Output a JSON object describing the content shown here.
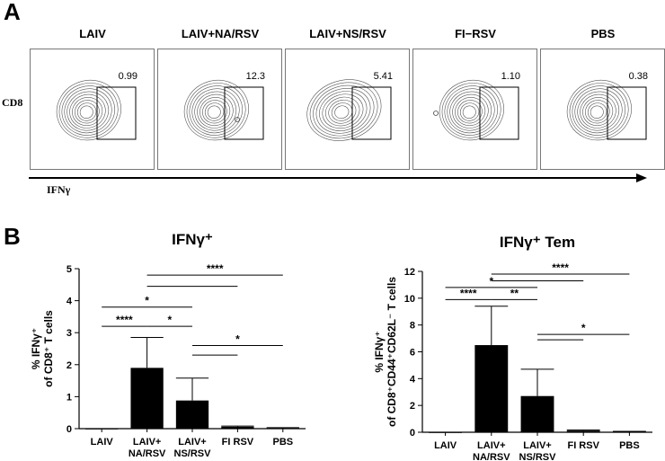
{
  "panel_a": {
    "letter": "A",
    "y_axis_label": "CD8",
    "x_axis_label": "IFNγ",
    "plots": [
      {
        "title": "LAIV",
        "gate_value": "0.99"
      },
      {
        "title": "LAIV+NA/RSV",
        "gate_value": "12.3"
      },
      {
        "title": "LAIV+NS/RSV",
        "gate_value": "5.41"
      },
      {
        "title": "FI−RSV",
        "gate_value": "1.10"
      },
      {
        "title": "PBS",
        "gate_value": "0.38"
      }
    ]
  },
  "panel_b": {
    "letter": "B"
  },
  "chart_data": [
    {
      "type": "bar",
      "title": "IFNγ⁺",
      "ylabel_line1": "% IFNγ⁺",
      "ylabel_line2": "of CD8⁺ T cells",
      "categories": [
        "LAIV",
        "LAIV+\nNA/RSV",
        "LAIV+\nNS/RSV",
        "FI RSV",
        "PBS"
      ],
      "values": [
        0,
        1.9,
        0.88,
        0.06,
        0.02
      ],
      "errors": [
        0,
        0.95,
        0.7,
        0.02,
        0.01
      ],
      "ylim": [
        0,
        5
      ],
      "yticks": [
        0,
        1,
        2,
        3,
        4,
        5
      ],
      "significance": [
        {
          "from": 1,
          "to": 4,
          "label": "****",
          "y": 4.8
        },
        {
          "from": 1,
          "to": 3,
          "label": "",
          "y": 4.45
        },
        {
          "from": 0,
          "to": 2,
          "label": "*",
          "y": 3.8
        },
        {
          "from": 0,
          "to": 1,
          "label": "****",
          "y": 3.2
        },
        {
          "from": 1,
          "to": 2,
          "label": "*",
          "y": 3.2
        },
        {
          "from": 2,
          "to": 4,
          "label": "*",
          "y": 2.6
        },
        {
          "from": 2,
          "to": 3,
          "label": "",
          "y": 2.3
        }
      ]
    },
    {
      "type": "bar",
      "title": "IFNγ⁺ Tem",
      "ylabel_line1": "% IFNγ⁺",
      "ylabel_line2": "of CD8⁺CD44⁺CD62L⁻ T cells",
      "categories": [
        "LAIV",
        "LAIV+\nNA/RSV",
        "LAIV+\nNS/RSV",
        "FI RSV",
        "PBS"
      ],
      "values": [
        0,
        6.5,
        2.7,
        0.12,
        0.05
      ],
      "errors": [
        0,
        2.9,
        2.0,
        0.05,
        0.02
      ],
      "ylim": [
        0,
        12
      ],
      "yticks": [
        0,
        2,
        4,
        6,
        8,
        10,
        12
      ],
      "significance": [
        {
          "from": 1,
          "to": 4,
          "label": "****",
          "y": 11.8
        },
        {
          "from": 1,
          "to": 3,
          "label": "",
          "y": 11.3
        },
        {
          "from": 0,
          "to": 2,
          "label": "*",
          "y": 10.8
        },
        {
          "from": 0,
          "to": 1,
          "label": "****",
          "y": 9.9
        },
        {
          "from": 1,
          "to": 2,
          "label": "**",
          "y": 9.9
        },
        {
          "from": 2,
          "to": 4,
          "label": "*",
          "y": 7.3
        },
        {
          "from": 2,
          "to": 3,
          "label": "",
          "y": 6.9
        }
      ]
    }
  ]
}
